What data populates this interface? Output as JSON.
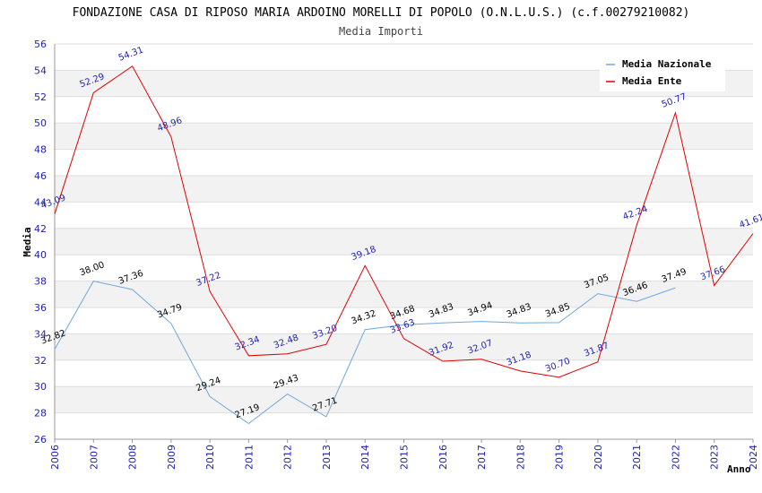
{
  "chart_data": {
    "type": "line",
    "title": "FONDAZIONE CASA DI RIPOSO MARIA ARDOINO MORELLI DI POPOLO (O.N.L.U.S.) (c.f.00279210082)",
    "subtitle": "Media Importi",
    "xlabel": "Anno",
    "ylabel": "Media",
    "ylim": [
      26,
      56
    ],
    "yticks": [
      "26",
      "28",
      "30",
      "32",
      "34",
      "36",
      "38",
      "40",
      "42",
      "44",
      "46",
      "48",
      "50",
      "52",
      "54",
      "56"
    ],
    "x": [
      "2006",
      "2007",
      "2008",
      "2009",
      "2010",
      "2011",
      "2012",
      "2013",
      "2014",
      "2015",
      "2016",
      "2017",
      "2018",
      "2019",
      "2020",
      "2021",
      "2022",
      "2023",
      "2024"
    ],
    "grid": true,
    "legend_position": "top-right",
    "series": [
      {
        "name": "Media Nazionale",
        "color": "#6fa8dc",
        "values": [
          32.82,
          38.0,
          37.36,
          34.79,
          29.24,
          27.19,
          29.43,
          27.71,
          34.32,
          34.68,
          34.83,
          34.94,
          34.83,
          34.85,
          37.05,
          36.46,
          37.49,
          null,
          null
        ],
        "labels": [
          "32.82",
          "38.00",
          "37.36",
          "34.79",
          "29.24",
          "27.19",
          "29.43",
          "27.71",
          "34.32",
          "34.68",
          "34.83",
          "34.94",
          "34.83",
          "34.85",
          "37.05",
          "36.46",
          "37.49",
          "",
          ""
        ]
      },
      {
        "name": "Media Ente",
        "color": "#e00000",
        "values": [
          43.09,
          52.29,
          54.31,
          48.96,
          37.22,
          32.34,
          32.48,
          33.2,
          39.18,
          33.63,
          31.92,
          32.07,
          31.18,
          30.7,
          31.87,
          42.24,
          50.77,
          37.66,
          41.61
        ],
        "labels": [
          "43.09",
          "52.29",
          "54.31",
          "48.96",
          "37.22",
          "32.34",
          "32.48",
          "33.20",
          "39.18",
          "33.63",
          "31.92",
          "32.07",
          "31.18",
          "30.70",
          "31.87",
          "42.24",
          "50.77",
          "37.66",
          "41.61"
        ]
      }
    ]
  }
}
